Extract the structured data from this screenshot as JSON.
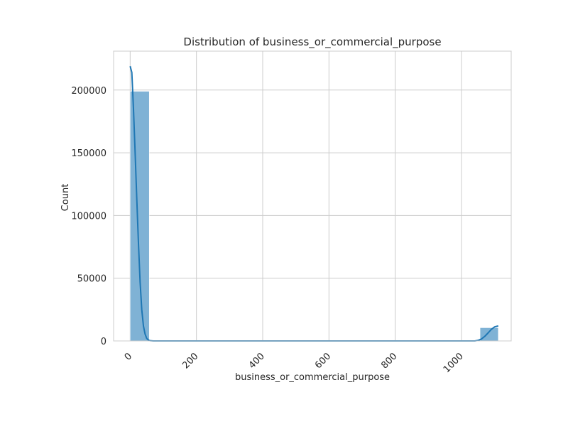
{
  "chart_data": {
    "type": "bar",
    "title": "Distribution of business_or_commercial_purpose",
    "xlabel": "business_or_commercial_purpose",
    "ylabel": "Count",
    "xlim": [
      -50,
      1150
    ],
    "ylim": [
      0,
      231000
    ],
    "x_ticks": [
      0,
      200,
      400,
      600,
      800,
      1000
    ],
    "y_ticks": [
      0,
      50000,
      100000,
      150000,
      200000
    ],
    "x_tick_rotation": 45,
    "grid": true,
    "bar_color": "#7fb2d5",
    "kde_color": "#1f77b4",
    "grid_color": "#cccccc",
    "bins": [
      {
        "x0": 0,
        "x1": 57.6,
        "count": 199000
      },
      {
        "x0": 1056,
        "x1": 1111,
        "count": 10500
      }
    ],
    "kde": [
      [
        0,
        219000
      ],
      [
        5,
        214000
      ],
      [
        10,
        185000
      ],
      [
        15,
        150000
      ],
      [
        20,
        113000
      ],
      [
        25,
        78000
      ],
      [
        30,
        47000
      ],
      [
        35,
        25000
      ],
      [
        40,
        12000
      ],
      [
        45,
        5500
      ],
      [
        50,
        2000
      ],
      [
        55,
        700
      ],
      [
        60,
        200
      ],
      [
        70,
        0
      ],
      [
        1040,
        0
      ],
      [
        1050,
        400
      ],
      [
        1060,
        1500
      ],
      [
        1070,
        3600
      ],
      [
        1080,
        6300
      ],
      [
        1090,
        9200
      ],
      [
        1100,
        11200
      ],
      [
        1111,
        12000
      ]
    ]
  }
}
